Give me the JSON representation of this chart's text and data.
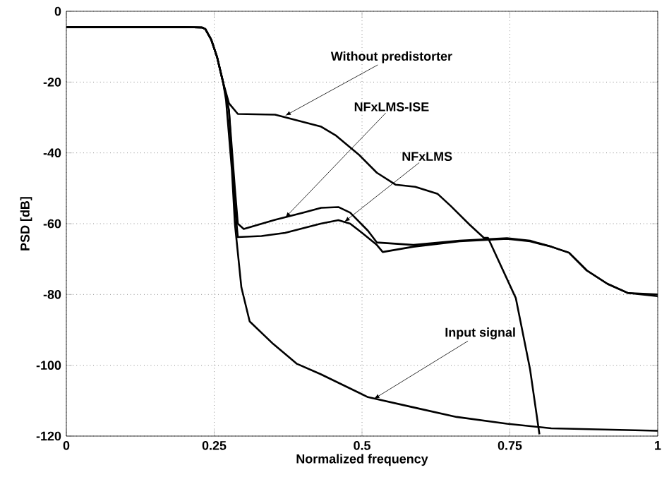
{
  "chart_data": {
    "type": "line",
    "xlabel": "Normalized frequency",
    "ylabel": "PSD [dB]",
    "xlim": [
      0,
      1
    ],
    "ylim": [
      -120,
      0
    ],
    "xticks": [
      0,
      0.25,
      0.5,
      0.75,
      1
    ],
    "yticks": [
      -120,
      -100,
      -80,
      -60,
      -40,
      -20,
      0
    ],
    "grid": true,
    "marker": "none",
    "line_style": "solid",
    "annotations": [
      {
        "text": "Without predistorter",
        "x": 0.37,
        "y": -29.5
      },
      {
        "text": "NFxLMS-ISE",
        "x": 0.37,
        "y": -58.3
      },
      {
        "text": "NFxLMS",
        "x": 0.47,
        "y": -59.5
      },
      {
        "text": "Input signal",
        "x": 0.52,
        "y": -109.5
      }
    ],
    "series": [
      {
        "color": "#000000",
        "x": [
          0,
          0.1,
          0.2,
          0.23,
          0.235,
          0.245,
          0.255,
          0.265,
          0.275,
          0.29,
          0.353,
          0.431,
          0.455,
          0.494,
          0.525,
          0.557,
          0.59,
          0.628,
          0.65,
          0.682,
          0.706,
          0.713,
          0.76,
          0.784,
          0.8
        ],
        "values": [
          -4.5,
          -4.5,
          -4.5,
          -4.6,
          -5,
          -8,
          -13,
          -20,
          -26,
          -29,
          -29.2,
          -32.6,
          -35,
          -40.4,
          -45.6,
          -49,
          -49.6,
          -51.6,
          -55,
          -60.3,
          -64,
          -64,
          -81,
          -101,
          -119.5
        ]
      },
      {
        "color": "#000000",
        "x": [
          0,
          0.1,
          0.2,
          0.23,
          0.235,
          0.245,
          0.255,
          0.265,
          0.275,
          0.285,
          0.29,
          0.3,
          0.353,
          0.4,
          0.431,
          0.46,
          0.48,
          0.51,
          0.525,
          0.587,
          0.665,
          0.745,
          0.784,
          0.82,
          0.85,
          0.88,
          0.915,
          0.95,
          1
        ],
        "values": [
          -4.5,
          -4.5,
          -4.5,
          -4.6,
          -5,
          -8,
          -13,
          -20,
          -28,
          -50,
          -60,
          -61.5,
          -58.9,
          -56.9,
          -55.5,
          -55.3,
          -56.9,
          -62,
          -65.3,
          -66,
          -64.8,
          -64.1,
          -64.8,
          -66.5,
          -68.2,
          -73.2,
          -77,
          -79.6,
          -80
        ]
      },
      {
        "color": "#000000",
        "x": [
          0,
          0.1,
          0.2,
          0.23,
          0.235,
          0.245,
          0.255,
          0.265,
          0.275,
          0.285,
          0.29,
          0.33,
          0.37,
          0.43,
          0.46,
          0.48,
          0.5,
          0.525,
          0.535,
          0.587,
          0.665,
          0.745,
          0.784,
          0.82,
          0.85,
          0.88,
          0.915,
          0.95,
          1
        ],
        "values": [
          -4.5,
          -4.5,
          -4.5,
          -4.6,
          -5,
          -8,
          -13,
          -20,
          -28,
          -55,
          -63.8,
          -63.5,
          -62.6,
          -60,
          -59,
          -60,
          -62.6,
          -66,
          -68,
          -66.5,
          -65,
          -64.3,
          -65,
          -66.5,
          -68.2,
          -73.2,
          -77,
          -79.6,
          -80.5
        ]
      },
      {
        "color": "#000000",
        "x": [
          0,
          0.1,
          0.2,
          0.23,
          0.235,
          0.245,
          0.255,
          0.265,
          0.27,
          0.28,
          0.285,
          0.296,
          0.31,
          0.35,
          0.39,
          0.43,
          0.51,
          0.59,
          0.66,
          0.745,
          0.82,
          1
        ],
        "values": [
          -4.5,
          -4.5,
          -4.5,
          -4.6,
          -5,
          -8,
          -13,
          -20,
          -25,
          -45,
          -60,
          -78,
          -87.6,
          -94,
          -99.6,
          -102.5,
          -109,
          -112,
          -114.6,
          -116.5,
          -117.8,
          -118.5
        ]
      }
    ]
  }
}
